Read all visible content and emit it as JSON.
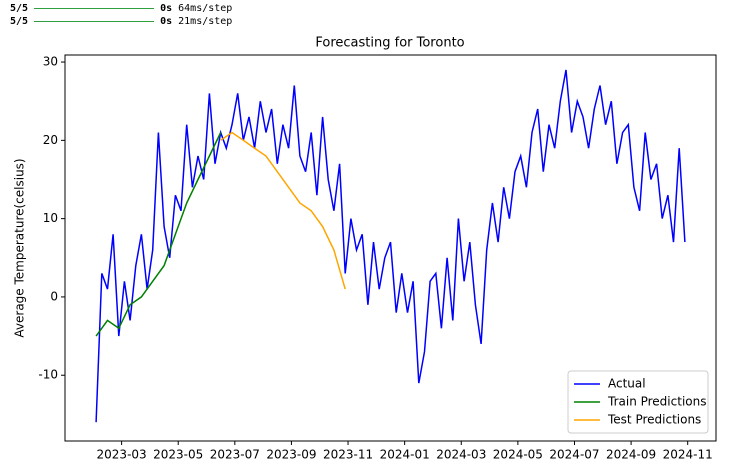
{
  "console": [
    {
      "progress": "5/5",
      "time": "0s",
      "rate": "64ms/step"
    },
    {
      "progress": "5/5",
      "time": "0s",
      "rate": "21ms/step"
    }
  ],
  "chart_data": {
    "type": "line",
    "title": "Forecasting for Toronto",
    "ylabel": "Average Temperature(celsius)",
    "xlim": [
      0,
      23
    ],
    "ylim": [
      -18.4,
      30.9
    ],
    "xticks": [
      {
        "value": 2,
        "label": "2023-03"
      },
      {
        "value": 4,
        "label": "2023-05"
      },
      {
        "value": 6,
        "label": "2023-07"
      },
      {
        "value": 8,
        "label": "2023-09"
      },
      {
        "value": 10,
        "label": "2023-11"
      },
      {
        "value": 12,
        "label": "2024-01"
      },
      {
        "value": 14,
        "label": "2024-03"
      },
      {
        "value": 16,
        "label": "2024-05"
      },
      {
        "value": 18,
        "label": "2024-07"
      },
      {
        "value": 20,
        "label": "2024-09"
      },
      {
        "value": 22,
        "label": "2024-11"
      }
    ],
    "yticks": [
      -10,
      0,
      10,
      20,
      30
    ],
    "grid": false,
    "legend": "lower right",
    "series": [
      {
        "name": "Actual",
        "color": "#0000ff",
        "x": [
          1.1,
          1.3,
          1.5,
          1.7,
          1.9,
          2.1,
          2.3,
          2.5,
          2.7,
          2.9,
          3.1,
          3.3,
          3.5,
          3.7,
          3.9,
          4.1,
          4.3,
          4.5,
          4.7,
          4.9,
          5.1,
          5.3,
          5.5,
          5.7,
          5.9,
          6.1,
          6.3,
          6.5,
          6.7,
          6.9,
          7.1,
          7.3,
          7.5,
          7.7,
          7.9,
          8.1,
          8.3,
          8.5,
          8.7,
          8.9,
          9.1,
          9.3,
          9.5,
          9.7,
          9.9,
          10.1,
          10.3,
          10.5,
          10.7,
          10.9,
          11.1,
          11.3,
          11.5,
          11.7,
          11.9,
          12.1,
          12.3,
          12.5,
          12.7,
          12.9,
          13.1,
          13.3,
          13.5,
          13.7,
          13.9,
          14.1,
          14.3,
          14.5,
          14.7,
          14.9,
          15.1,
          15.3,
          15.5,
          15.7,
          15.9,
          16.1,
          16.3,
          16.5,
          16.7,
          16.9,
          17.1,
          17.3,
          17.5,
          17.7,
          17.9,
          18.1,
          18.3,
          18.5,
          18.7,
          18.9,
          19.1,
          19.3,
          19.5,
          19.7,
          19.9,
          20.1,
          20.3,
          20.5,
          20.7,
          20.9,
          21.1,
          21.3,
          21.5,
          21.7,
          21.9
        ],
        "values": [
          -16,
          3,
          1,
          8,
          -5,
          2,
          -3,
          4,
          8,
          1,
          6,
          21,
          9,
          5,
          13,
          11,
          22,
          14,
          18,
          15,
          26,
          17,
          21,
          19,
          22,
          26,
          20,
          23,
          19,
          25,
          21,
          24,
          17,
          22,
          19,
          27,
          18,
          16,
          21,
          13,
          23,
          15,
          11,
          17,
          3,
          10,
          6,
          8,
          -1,
          7,
          1,
          5,
          7,
          -2,
          3,
          -2,
          2,
          -11,
          -7,
          2,
          3,
          -4,
          5,
          -3,
          10,
          2,
          7,
          -1,
          -6,
          6,
          12,
          7,
          14,
          10,
          16,
          18,
          14,
          21,
          24,
          16,
          22,
          19,
          25,
          29,
          21,
          25,
          23,
          19,
          24,
          27,
          22,
          25,
          17,
          21,
          22,
          14,
          11,
          21,
          15,
          17,
          10,
          13,
          7,
          19,
          7
        ]
      },
      {
        "name": "Train Predictions",
        "color": "#008000",
        "x": [
          1.1,
          1.5,
          1.9,
          2.3,
          2.7,
          3.1,
          3.5,
          3.9,
          4.3,
          4.7,
          5.1,
          5.5
        ],
        "values": [
          -5,
          -3,
          -4,
          -1,
          0,
          2,
          4,
          8,
          12,
          15,
          18,
          21
        ]
      },
      {
        "name": "Test Predictions",
        "color": "#ffa500",
        "x": [
          5.5,
          5.9,
          6.3,
          6.7,
          7.1,
          7.5,
          7.9,
          8.3,
          8.7,
          9.1,
          9.5,
          9.9
        ],
        "values": [
          20,
          21,
          20,
          19,
          18,
          16,
          14,
          12,
          11,
          9,
          6,
          1
        ]
      }
    ]
  }
}
